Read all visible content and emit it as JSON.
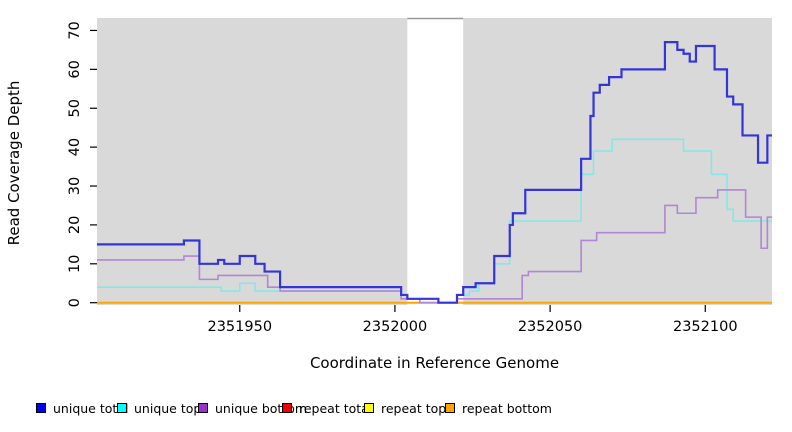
{
  "chart_data": {
    "type": "line",
    "subtype": "step",
    "title": "",
    "xlabel": "Coordinate in Reference Genome",
    "ylabel": "Read Coverage Depth",
    "xlim": [
      2351904,
      2352121.5
    ],
    "ylim": [
      0,
      73.2
    ],
    "x_ticks": [
      2351950,
      2352000,
      2352050,
      2352100
    ],
    "y_ticks": [
      0,
      10,
      20,
      30,
      40,
      50,
      60,
      70
    ],
    "grid": "off",
    "legend_position": "bottom",
    "plot_bg": "#d9d9d9",
    "band_border_color": "#999999",
    "axis_color": "#000000",
    "highlight_band": {
      "x_start": 2352004,
      "x_end": 2352022,
      "color": "#ffffff"
    },
    "series": [
      {
        "name": "repeat total",
        "color": "#dd0000",
        "width": 1.5,
        "points": [
          [
            2351904,
            0
          ]
        ]
      },
      {
        "name": "repeat top",
        "color": "#ffff00",
        "width": 1.5,
        "points": [
          [
            2351904,
            0
          ]
        ]
      },
      {
        "name": "repeat bottom",
        "color": "#ffa500",
        "width": 2,
        "points": [
          [
            2351904,
            0
          ]
        ]
      },
      {
        "name": "unique top",
        "color": "#85e8e8",
        "width": 1.6,
        "points": [
          [
            2351904,
            4
          ],
          [
            2351944,
            3
          ],
          [
            2351950,
            5
          ],
          [
            2351955,
            3
          ],
          [
            2352002,
            1
          ],
          [
            2352008,
            0
          ],
          [
            2352020,
            2
          ],
          [
            2352024,
            3
          ],
          [
            2352027,
            5
          ],
          [
            2352032,
            10
          ],
          [
            2352037,
            21
          ],
          [
            2352060,
            33
          ],
          [
            2352064,
            39
          ],
          [
            2352070,
            42
          ],
          [
            2352093,
            39
          ],
          [
            2352102,
            33
          ],
          [
            2352107,
            24
          ],
          [
            2352109,
            21
          ]
        ]
      },
      {
        "name": "unique bottom",
        "color": "#b286d2",
        "width": 1.6,
        "points": [
          [
            2351904,
            11
          ],
          [
            2351932,
            12
          ],
          [
            2351937,
            6
          ],
          [
            2351943,
            7
          ],
          [
            2351959,
            4
          ],
          [
            2351963,
            3
          ],
          [
            2352002,
            1
          ],
          [
            2352008,
            0
          ],
          [
            2352020,
            1
          ],
          [
            2352041,
            7
          ],
          [
            2352043,
            8
          ],
          [
            2352060,
            16
          ],
          [
            2352065,
            18
          ],
          [
            2352087,
            25
          ],
          [
            2352091,
            23
          ],
          [
            2352097,
            27
          ],
          [
            2352104,
            29
          ],
          [
            2352113,
            22
          ],
          [
            2352118,
            14
          ],
          [
            2352120,
            22
          ]
        ]
      },
      {
        "name": "unique total",
        "color": "#3434d9",
        "width": 2.2,
        "points": [
          [
            2351904,
            15
          ],
          [
            2351932,
            16
          ],
          [
            2351937,
            10
          ],
          [
            2351943,
            11
          ],
          [
            2351945,
            10
          ],
          [
            2351950,
            12
          ],
          [
            2351955,
            10
          ],
          [
            2351958,
            8
          ],
          [
            2351963,
            4
          ],
          [
            2352002,
            2
          ],
          [
            2352004,
            1
          ],
          [
            2352014,
            0
          ],
          [
            2352020,
            2
          ],
          [
            2352022,
            4
          ],
          [
            2352026,
            5
          ],
          [
            2352032,
            12
          ],
          [
            2352037,
            20
          ],
          [
            2352038,
            23
          ],
          [
            2352042,
            29
          ],
          [
            2352060,
            37
          ],
          [
            2352063,
            48
          ],
          [
            2352064,
            54
          ],
          [
            2352066,
            56
          ],
          [
            2352069,
            58
          ],
          [
            2352073,
            60
          ],
          [
            2352087,
            67
          ],
          [
            2352091,
            65
          ],
          [
            2352093,
            64
          ],
          [
            2352095,
            62
          ],
          [
            2352097,
            66
          ],
          [
            2352103,
            60
          ],
          [
            2352107,
            53
          ],
          [
            2352109,
            51
          ],
          [
            2352112,
            43
          ],
          [
            2352117,
            36
          ],
          [
            2352120,
            43
          ]
        ]
      }
    ]
  },
  "legend": {
    "items": [
      {
        "label": "unique total",
        "color": "#0000ee"
      },
      {
        "label": "unique top",
        "color": "#00ffff"
      },
      {
        "label": "unique bottom",
        "color": "#9932cc"
      },
      {
        "label": "repeat total",
        "color": "#ee0000"
      },
      {
        "label": "repeat top",
        "color": "#ffff00"
      },
      {
        "label": "repeat bottom",
        "color": "#ffa500"
      }
    ]
  }
}
